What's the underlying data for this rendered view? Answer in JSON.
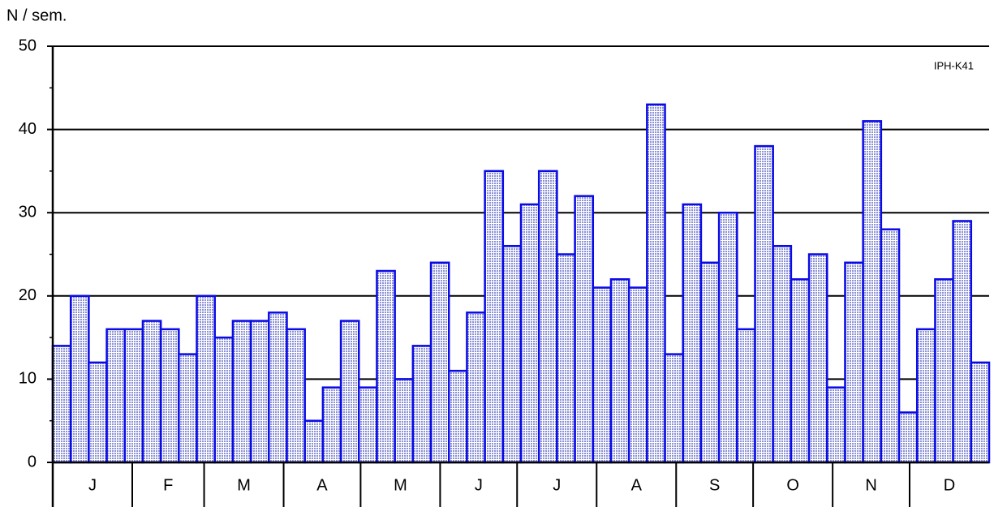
{
  "chart_data": {
    "type": "bar",
    "y_label": "N / sem.",
    "annotation": "IPH-K41",
    "categories": [
      null,
      null,
      null,
      null,
      null,
      null,
      null,
      null,
      null,
      null,
      null,
      null,
      null,
      null,
      null,
      null,
      null,
      null,
      null,
      null,
      null,
      null,
      null,
      null,
      null,
      null,
      null,
      null,
      null,
      null,
      null,
      null,
      null,
      null,
      null,
      null,
      null,
      null,
      null,
      null,
      null,
      null,
      null,
      null,
      null,
      null,
      null,
      null,
      null,
      null,
      null,
      null
    ],
    "values": [
      14,
      20,
      12,
      16,
      16,
      17,
      16,
      13,
      20,
      15,
      17,
      17,
      18,
      16,
      5,
      9,
      17,
      9,
      23,
      10,
      14,
      24,
      11,
      18,
      35,
      26,
      31,
      35,
      25,
      32,
      21,
      22,
      21,
      43,
      13,
      31,
      24,
      30,
      16,
      38,
      26,
      22,
      25,
      9,
      24,
      41,
      28,
      6,
      16,
      22,
      29,
      12
    ],
    "month_labels": [
      "J",
      "F",
      "M",
      "A",
      "M",
      "J",
      "J",
      "A",
      "S",
      "O",
      "N",
      "D"
    ],
    "color": "#aab0e2",
    "edge_color": "#0a0ae6",
    "ylim": [
      0,
      50
    ],
    "yticks": [
      0,
      10,
      20,
      30,
      40,
      50
    ],
    "minor_yticks": [
      5,
      15,
      25,
      35,
      45
    ],
    "grid": true
  }
}
